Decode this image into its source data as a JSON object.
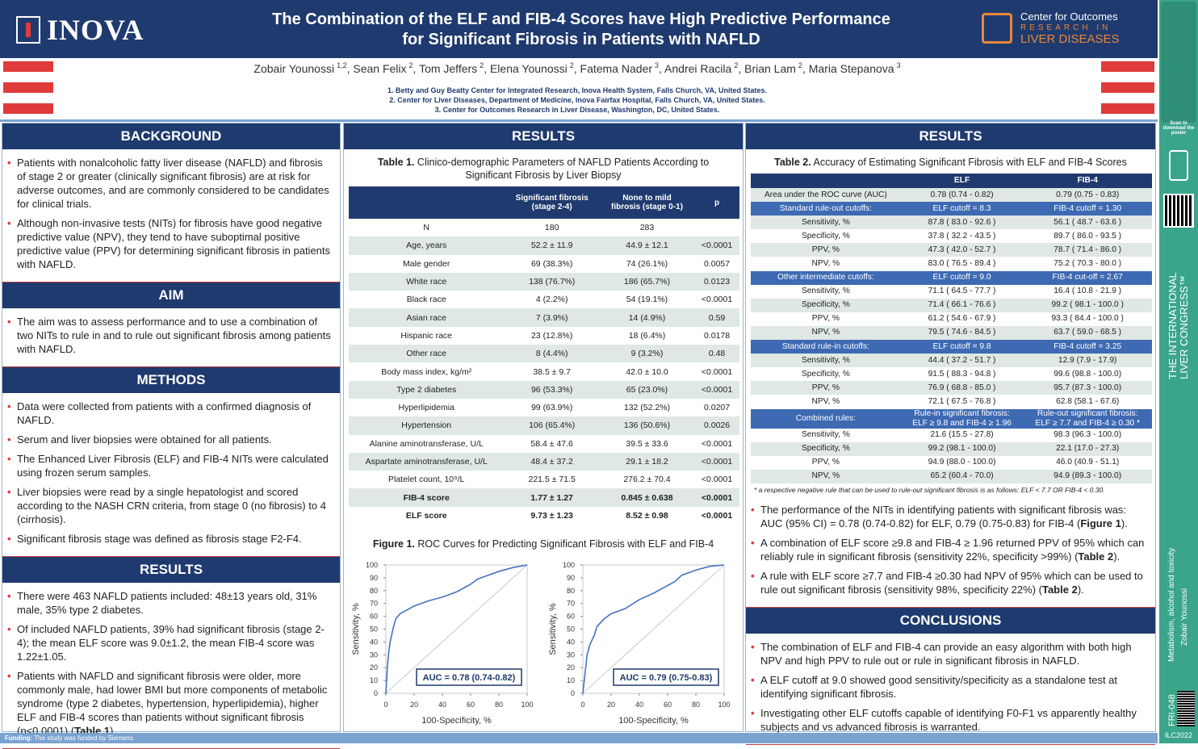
{
  "header": {
    "title": [
      "The Combination of the ELF and FIB-4 Scores have High Predictive Performance",
      "for Significant Fibrosis in Patients with NAFLD"
    ],
    "logo": "INOVA",
    "center_logo": [
      "Center for Outcomes",
      "RESEARCH IN",
      "LIVER DISEASES"
    ],
    "authors": [
      {
        "name": "Zobair Younossi",
        "aff": "1,2"
      },
      {
        "name": "Sean Felix",
        "aff": "2"
      },
      {
        "name": "Tom Jeffers",
        "aff": "2"
      },
      {
        "name": "Elena Younossi",
        "aff": "2"
      },
      {
        "name": "Fatema Nader",
        "aff": "3"
      },
      {
        "name": "Andrei Racila",
        "aff": "2"
      },
      {
        "name": "Brian Lam",
        "aff": "2"
      },
      {
        "name": "Maria Stepanova",
        "aff": "3"
      }
    ],
    "affiliations": [
      "1.  Betty and Guy Beatty Center for Integrated Research, Inova Health System, Falls Church, VA, United States.",
      "2.  Center for Liver Diseases, Department of Medicine, Inova Fairfax Hospital, Falls Church, VA, United States.",
      "3.  Center for Outcomes Research in Liver Disease, Washington, DC, United States."
    ]
  },
  "background": {
    "heading": "BACKGROUND",
    "bullets": [
      "Patients with nonalcoholic fatty liver disease (NAFLD) and fibrosis of stage 2 or greater (clinically significant fibrosis) are at risk for adverse outcomes, and are commonly considered to be candidates for clinical trials.",
      "Although non-invasive tests (NITs) for fibrosis have good negative predictive value (NPV), they tend to have suboptimal positive predictive value (PPV) for determining significant fibrosis in patients with NAFLD."
    ]
  },
  "aim": {
    "heading": "AIM",
    "bullets": [
      "The aim was to assess performance and to use a combination of two NITs to rule in and to rule out significant fibrosis among patients with NAFLD."
    ]
  },
  "methods": {
    "heading": "METHODS",
    "bullets": [
      "Data were collected from patients with a confirmed diagnosis of NAFLD.",
      "Serum and liver biopsies were obtained for all patients.",
      "The Enhanced Liver Fibrosis (ELF) and FIB-4 NITs were calculated using frozen serum samples.",
      "Liver biopsies were read by a single hepatologist and scored according to the NASH CRN criteria, from stage 0 (no fibrosis) to 4 (cirrhosis).",
      "Significant fibrosis stage was defined as fibrosis stage F2-F4."
    ]
  },
  "results_left": {
    "heading": "RESULTS",
    "bullets": [
      "There were 463 NAFLD patients included: 48±13 years old, 31% male, 35% type 2 diabetes.",
      "Of included NAFLD patients, 39% had significant fibrosis (stage 2-4); the mean ELF score was 9.0±1.2, the mean FIB-4 score was 1.22±1.05.",
      [
        {
          "text": "Patients with NAFLD and significant fibrosis were older, more commonly male, had lower BMI but more components of metabolic syndrome (type 2 diabetes, hypertension, hyperlipidemia), higher ELF and FIB-4 scores than patients without significant fibrosis (p<0.0001) ("
        },
        {
          "text": "Table 1",
          "bold": true
        },
        {
          "text": ")."
        }
      ]
    ]
  },
  "results_mid": {
    "heading": "RESULTS"
  },
  "table1": {
    "label": "Table 1.",
    "caption": " Clinico-demographic Parameters of NAFLD Patients According to Significant Fibrosis by Liver Biopsy",
    "columns": [
      [
        "Significant fibrosis",
        "(stage 2-4)"
      ],
      [
        "None to mild",
        "fibrosis (stage 0-1)"
      ],
      [
        "p"
      ]
    ],
    "rows": [
      [
        "N",
        "180",
        "283"
      ],
      [
        "Age, years",
        "52.2 ± 11.9",
        "44.9 ± 12.1",
        "<0.0001"
      ],
      [
        "Male gender",
        "69 (38.3%)",
        "74 (26.1%)",
        "0.0057"
      ],
      [
        "White race",
        "138 (76.7%)",
        "186 (65.7%)",
        "0.0123"
      ],
      [
        "Black race",
        "4 (2.2%)",
        "54 (19.1%)",
        "<0.0001"
      ],
      [
        "Asian race",
        "7 (3.9%)",
        "14 (4.9%)",
        "0.59"
      ],
      [
        "Hispanic race",
        "23 (12.8%)",
        "18 (6.4%)",
        "0.0178"
      ],
      [
        "Other race",
        "8 (4.4%)",
        "9 (3.2%)",
        "0.48"
      ],
      [
        "Body mass index, kg/m²",
        "38.5 ± 9.7",
        "42.0 ± 10.0",
        "<0.0001"
      ],
      [
        "Type 2 diabetes",
        "96 (53.3%)",
        "65 (23.0%)",
        "<0.0001"
      ],
      [
        "Hyperlipidemia",
        "99 (63.9%)",
        "132 (52.2%)",
        "0.0207"
      ],
      [
        "Hypertension",
        "106 (65.4%)",
        "136 (50.6%)",
        "0.0026"
      ],
      [
        "Alanine aminotransferase, U/L",
        "58.4 ± 47.6",
        "39.5 ± 33.6",
        "<0.0001"
      ],
      [
        "Aspartate aminotransferase, U/L",
        "48.4 ± 37.2",
        "29.1 ± 18.2",
        "<0.0001"
      ],
      [
        "Platelet count, 10⁹/L",
        "221.5 ± 71.5",
        "276.2 ± 70.4",
        "<0.0001"
      ],
      {
        "cells": [
          "FIB-4 score",
          "1.77 ± 1.27",
          "0.845 ± 0.638",
          "<0.0001"
        ],
        "bold": true
      },
      {
        "cells": [
          "ELF score",
          "9.73 ± 1.23",
          "8.52 ± 0.98",
          "<0.0001"
        ],
        "bold": true
      }
    ]
  },
  "figure1": {
    "label": "Figure 1.",
    "caption": " ROC Curves for Predicting Significant Fibrosis with ELF and FIB-4",
    "charts": [
      {
        "type": "line",
        "ylabel": "Sensitivity, %",
        "xlabel": "100-Specificity, %",
        "annotation": "AUC = 0.78 (0.74-0.82)",
        "color": "#4472c4",
        "xlim": [
          0,
          100
        ],
        "ylim": [
          0,
          100
        ],
        "xticks": [
          0,
          20,
          40,
          60,
          80,
          100
        ],
        "yticks": [
          0,
          10,
          20,
          30,
          40,
          50,
          60,
          70,
          80,
          90,
          100
        ],
        "x": [
          0,
          1,
          2,
          3,
          5,
          7,
          10,
          15,
          20,
          30,
          40,
          50,
          55,
          60,
          65,
          70,
          80,
          90,
          100
        ],
        "y": [
          0,
          20,
          32,
          40,
          50,
          58,
          62,
          65,
          68,
          72,
          75,
          79,
          82,
          85,
          89,
          91,
          95,
          98,
          100
        ]
      },
      {
        "type": "line",
        "ylabel": "Sensitivity, %",
        "xlabel": "100-Specificity, %",
        "annotation": "AUC = 0.79 (0.75-0.83)",
        "color": "#4472c4",
        "xlim": [
          0,
          100
        ],
        "ylim": [
          0,
          100
        ],
        "xticks": [
          0,
          20,
          40,
          60,
          80,
          100
        ],
        "yticks": [
          0,
          10,
          20,
          30,
          40,
          50,
          60,
          70,
          80,
          90,
          100
        ],
        "x": [
          0,
          2,
          3,
          5,
          8,
          10,
          15,
          20,
          30,
          40,
          50,
          60,
          65,
          70,
          80,
          90,
          100
        ],
        "y": [
          0,
          20,
          30,
          38,
          45,
          52,
          58,
          62,
          66,
          73,
          78,
          84,
          87,
          92,
          96,
          99,
          100
        ]
      }
    ]
  },
  "results_right": {
    "heading": "RESULTS"
  },
  "table2": {
    "label": "Table 2.",
    "caption": " Accuracy of Estimating Significant Fibrosis with ELF and FIB-4 Scores",
    "columns": [
      "ELF",
      "FIB-4"
    ],
    "rows": [
      [
        "Area under the ROC curve (AUC)",
        "0.78 (0.74 - 0.82)",
        "0.79 (0.75 - 0.83)"
      ],
      {
        "cells": [
          "Standard rule-out cutoffs:",
          "ELF cutoff = 8.3",
          "FIB-4 cutoff = 1.30"
        ],
        "section": true
      },
      [
        "Sensitivity, %",
        "87.8 ( 83.0 - 92.6 )",
        "56.1 ( 48.7 - 63.6 )"
      ],
      [
        "Specificity, %",
        "37.8 ( 32.2 - 43.5 )",
        "89.7 ( 86.0 - 93.5 )"
      ],
      [
        "PPV, %",
        "47.3 ( 42.0 - 52.7 )",
        "78.7 ( 71.4 - 86.0 )"
      ],
      [
        "NPV, %",
        "83.0 ( 76.5 - 89.4 )",
        "75.2 ( 70.3 - 80.0 )"
      ],
      {
        "cells": [
          "Other intermediate cutoffs:",
          "ELF cutoff = 9.0",
          "FIB-4 cut-off = 2.67"
        ],
        "section": true
      },
      [
        "Sensitivity, %",
        "71.1 ( 64.5 - 77.7 )",
        "16.4 ( 10.8 - 21.9 )"
      ],
      [
        "Specificity, %",
        "71.4 ( 66.1 - 76.6 )",
        "99.2 ( 98.1 - 100.0 )"
      ],
      [
        "PPV, %",
        "61.2 ( 54.6 - 67.9 )",
        "93.3 ( 84.4 - 100.0 )"
      ],
      [
        "NPV, %",
        "79.5 ( 74.6 - 84.5 )",
        "63.7 ( 59.0 - 68.5 )"
      ],
      {
        "cells": [
          "Standard rule-in cutoffs:",
          "ELF cutoff = 9.8",
          "FIB-4 cutoff = 3.25"
        ],
        "section": true
      },
      [
        "Sensitivity, %",
        "44.4 ( 37.2 - 51.7 )",
        "12.9 (7.9 - 17.9)"
      ],
      [
        "Specificity, %",
        "91.5 ( 88.3 - 94.8 )",
        "99.6 (98.8 - 100.0)"
      ],
      [
        "PPV, %",
        "76.9 ( 68.8 - 85.0 )",
        "95.7 (87.3 - 100.0)"
      ],
      [
        "NPV, %",
        "72.1 ( 67.5 - 76.8 )",
        "62.8 (58.1 - 67.6)"
      ],
      {
        "cells": [
          "Combined rules:",
          [
            "Rule-in significant fibrosis:",
            "ELF ≥ 9.8 and FIB-4 ≥ 1.96"
          ],
          [
            "Rule-out significant fibrosis:",
            "ELF ≥ 7.7 and FIB-4 ≥ 0.30 *"
          ]
        ],
        "section": true
      },
      [
        "Sensitivity, %",
        "21.6 (15.5 - 27.8)",
        "98.3 (96.3 - 100.0)"
      ],
      [
        "Specificity, %",
        "99.2 (98.1 - 100.0)",
        "22.1 (17.0 - 27.3)"
      ],
      [
        "PPV, %",
        "94.9 (88.0 - 100.0)",
        "46.0 (40.9 - 51.1)"
      ],
      [
        "NPV, %",
        "65.2 (60.4 - 70.0)",
        "94.9 (89.3 - 100.0)"
      ]
    ],
    "footnote": "* a respective negative rule that can be used to rule-out significant fibrosis is as follows: ELF < 7.7 OR FIB-4 < 0.30.",
    "bullets": [
      [
        {
          "text": "The performance of the NITs in identifying patients with significant fibrosis was: AUC (95% CI) = 0.78 (0.74-0.82) for ELF, 0.79 (0.75-0.83) for FIB-4 ("
        },
        {
          "text": "Figure 1",
          "bold": true
        },
        {
          "text": ")."
        }
      ],
      [
        {
          "text": "A combination of ELF score ≥9.8 and FIB-4 ≥ 1.96 returned PPV of 95% which can reliably rule in significant fibrosis (sensitivity 22%, specificity >99%) ("
        },
        {
          "text": "Table 2",
          "bold": true
        },
        {
          "text": ")."
        }
      ],
      [
        {
          "text": "A rule with ELF score ≥7.7 and FIB-4 ≥0.30 had NPV of 95% which can be used to rule out significant fibrosis (sensitivity 98%, specificity 22%) ("
        },
        {
          "text": "Table 2",
          "bold": true
        },
        {
          "text": ")."
        }
      ]
    ]
  },
  "conclusions": {
    "heading": "CONCLUSIONS",
    "bullets": [
      "The combination of ELF and FIB-4 can provide an easy algorithm with both high NPV and high PPV to rule out or rule in significant fibrosis in NAFLD.",
      "A ELF cutoff at 9.0 showed good sensitivity/specificity as a standalone test at identifying significant fibrosis.",
      "Investigating other ELF cutoffs capable of identifying F0-F1 vs apparently healthy subjects and vs advanced fibrosis is warranted."
    ]
  },
  "funding": {
    "label": "Funding:",
    "text": " The study was funded by Siemens."
  },
  "sidebar": {
    "scan": "Scan to download the poster",
    "congress": [
      "THE INTERNATIONAL",
      "LIVER CONGRESS™"
    ],
    "topic": "Metabolism, alcohol and toxicity",
    "author": "Zobair Younossi",
    "code": "FRI-048",
    "event": "ILC2022"
  }
}
